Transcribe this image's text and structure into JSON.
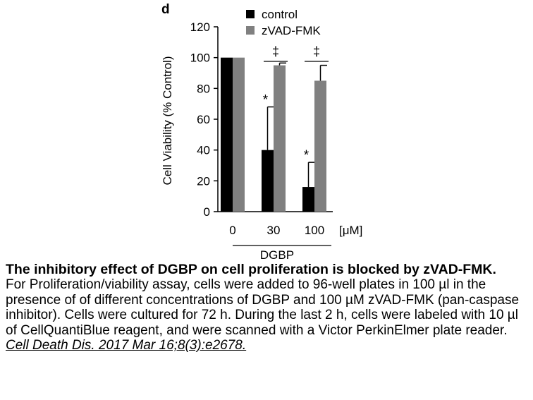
{
  "chart_data": {
    "type": "bar",
    "panel_label": "d",
    "ylabel": "Cell Viability (% Control)",
    "ylim": [
      0,
      120
    ],
    "yticks": [
      0,
      20,
      40,
      60,
      80,
      100,
      120
    ],
    "categories": [
      "0",
      "30",
      "100"
    ],
    "x_unit": "[μM]",
    "x_group_label": "DGBP",
    "grid": false,
    "legend": "top-right",
    "series": [
      {
        "name": "control",
        "color": "#000000",
        "values": [
          100,
          40,
          16
        ],
        "errors": [
          0,
          28,
          16
        ]
      },
      {
        "name": "zVAD-FMK",
        "color": "#808080",
        "values": [
          100,
          95,
          85
        ],
        "errors": [
          0,
          1.5,
          10
        ]
      }
    ],
    "annotations": [
      {
        "category": 1,
        "series": 0,
        "symbol": "*"
      },
      {
        "category": 2,
        "series": 0,
        "symbol": "*"
      },
      {
        "category": 1,
        "symbol": "‡"
      },
      {
        "category": 2,
        "symbol": "‡"
      }
    ]
  },
  "caption": {
    "title": "The inhibitory effect of DGBP on cell proliferation is blocked by zVAD-FMK.",
    "body": "For Proliferation/viability assay, cells were added to 96-well plates in 100 µl in the presence of of different concentrations of DGBP and 100 µM zVAD-FMK (pan-caspase inhibitor). Cells were cultured for 72 h. During the last 2 h, cells were labeled with 10 µl of CellQuantiBlue reagent, and were scanned with a Victor PerkinElmer plate reader.",
    "citation": "Cell Death Dis. 2017 Mar 16;8(3):e2678."
  }
}
